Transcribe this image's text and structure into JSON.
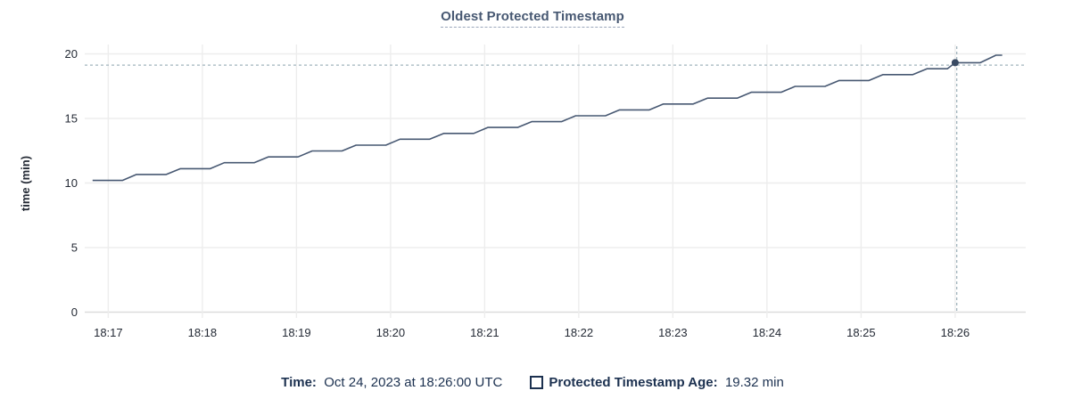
{
  "title": "Oldest Protected Timestamp",
  "colors": {
    "title": "#475872",
    "title_underline": "#9aa6bb",
    "axis_text": "#242a35",
    "grid": "#ededed",
    "zero_line": "#dcdcdc",
    "series_line": "#475872",
    "hover_dot": "#394a63",
    "crosshair": "#a2b4bd",
    "legend_text": "#1c3150"
  },
  "chart_data": {
    "type": "line",
    "title": "Oldest Protected Timestamp",
    "xlabel": "",
    "ylabel": "time (min)",
    "ylim": [
      0,
      20
    ],
    "y_ticks": [
      0,
      5,
      10,
      15,
      20
    ],
    "x_ticks": [
      "18:17",
      "18:18",
      "18:19",
      "18:20",
      "18:21",
      "18:22",
      "18:23",
      "18:24",
      "18:25",
      "18:26"
    ],
    "x_domain": [
      "18:16:45",
      "18:26:45"
    ],
    "grid": true,
    "legend_position": "bottom",
    "series": [
      {
        "name": "Protected Timestamp Age",
        "points": [
          [
            "18:16:50",
            10.2
          ],
          [
            "18:17:09",
            10.2
          ],
          [
            "18:17:18",
            10.66
          ],
          [
            "18:17:37",
            10.66
          ],
          [
            "18:17:46",
            11.11
          ],
          [
            "18:18:05",
            11.11
          ],
          [
            "18:18:14",
            11.57
          ],
          [
            "18:18:33",
            11.57
          ],
          [
            "18:18:42",
            12.02
          ],
          [
            "18:19:01",
            12.02
          ],
          [
            "18:19:10",
            12.48
          ],
          [
            "18:19:29",
            12.48
          ],
          [
            "18:19:38",
            12.93
          ],
          [
            "18:19:57",
            12.93
          ],
          [
            "18:20:06",
            13.39
          ],
          [
            "18:20:25",
            13.39
          ],
          [
            "18:20:34",
            13.84
          ],
          [
            "18:20:53",
            13.84
          ],
          [
            "18:21:02",
            14.3
          ],
          [
            "18:21:21",
            14.3
          ],
          [
            "18:21:30",
            14.75
          ],
          [
            "18:21:49",
            14.75
          ],
          [
            "18:21:58",
            15.21
          ],
          [
            "18:22:17",
            15.21
          ],
          [
            "18:22:26",
            15.66
          ],
          [
            "18:22:45",
            15.66
          ],
          [
            "18:22:54",
            16.12
          ],
          [
            "18:23:13",
            16.12
          ],
          [
            "18:23:22",
            16.57
          ],
          [
            "18:23:41",
            16.57
          ],
          [
            "18:23:50",
            17.03
          ],
          [
            "18:24:09",
            17.03
          ],
          [
            "18:24:18",
            17.48
          ],
          [
            "18:24:37",
            17.48
          ],
          [
            "18:24:46",
            17.94
          ],
          [
            "18:25:05",
            17.94
          ],
          [
            "18:25:14",
            18.39
          ],
          [
            "18:25:33",
            18.39
          ],
          [
            "18:25:42",
            18.85
          ],
          [
            "18:25:55",
            18.85
          ],
          [
            "18:26:00",
            19.32
          ],
          [
            "18:26:16",
            19.32
          ],
          [
            "18:26:26",
            19.9
          ],
          [
            "18:26:30",
            19.9
          ]
        ]
      }
    ],
    "hover": {
      "time": "18:26:00",
      "value": 19.32,
      "cursor_time": "18:26:01",
      "cursor_value": 19.13
    }
  },
  "tooltip": {
    "time_label": "Time:",
    "time_value": "Oct 24, 2023 at 18:26:00 UTC",
    "series_label": "Protected Timestamp Age:",
    "series_value": "19.32 min"
  }
}
